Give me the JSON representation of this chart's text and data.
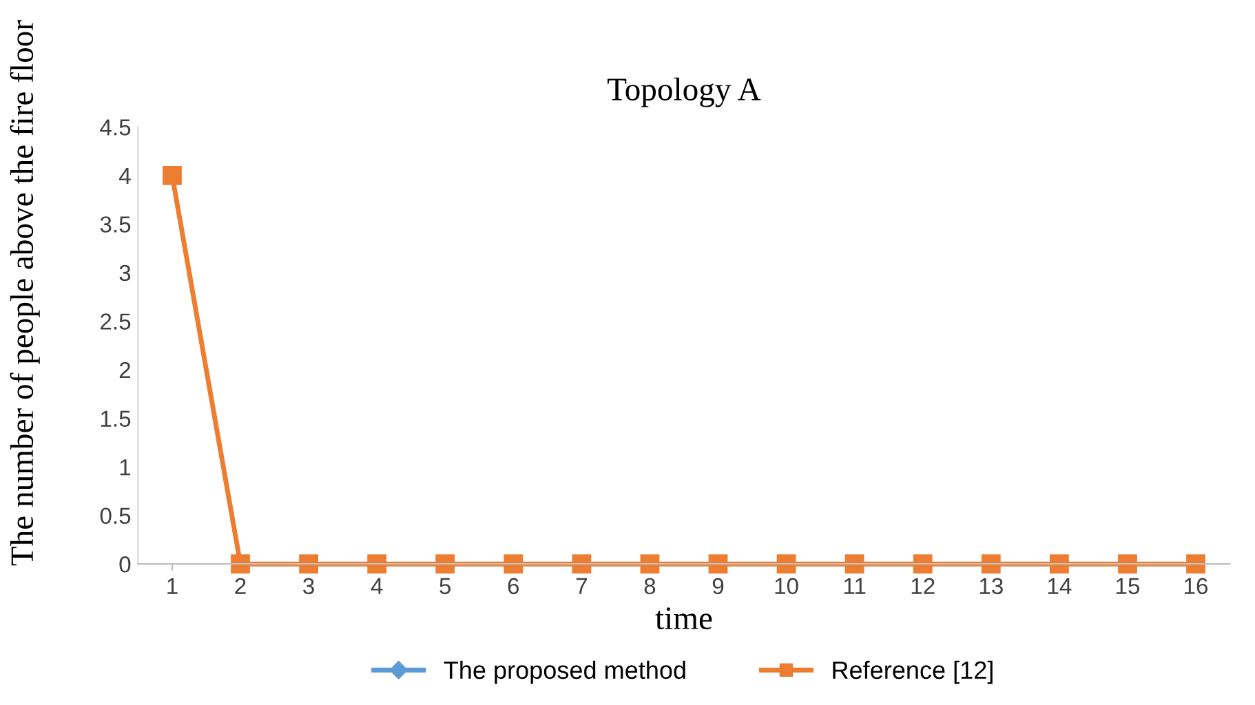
{
  "chart_data": {
    "type": "line",
    "title": "Topology A",
    "xlabel": "time",
    "ylabel": "The number of people above the fire floor",
    "categories": [
      "1",
      "2",
      "3",
      "4",
      "5",
      "6",
      "7",
      "8",
      "9",
      "10",
      "11",
      "12",
      "13",
      "14",
      "15",
      "16"
    ],
    "series": [
      {
        "name": "The proposed method",
        "color": "#5b9bd5",
        "marker": "diamond",
        "values": [
          null,
          null,
          null,
          null,
          null,
          null,
          null,
          null,
          null,
          null,
          null,
          null,
          null,
          null,
          null,
          null
        ]
      },
      {
        "name": "Reference [12]",
        "color": "#ed7d31",
        "marker": "square",
        "values": [
          4,
          0,
          0,
          0,
          0,
          0,
          0,
          0,
          0,
          0,
          0,
          0,
          0,
          0,
          0,
          0
        ]
      }
    ],
    "ylim": [
      0,
      4.5
    ],
    "yticks": [
      0,
      0.5,
      1,
      1.5,
      2,
      2.5,
      3,
      3.5,
      4,
      4.5
    ],
    "grid": false,
    "legend": "bottom",
    "line_style": "solid"
  }
}
